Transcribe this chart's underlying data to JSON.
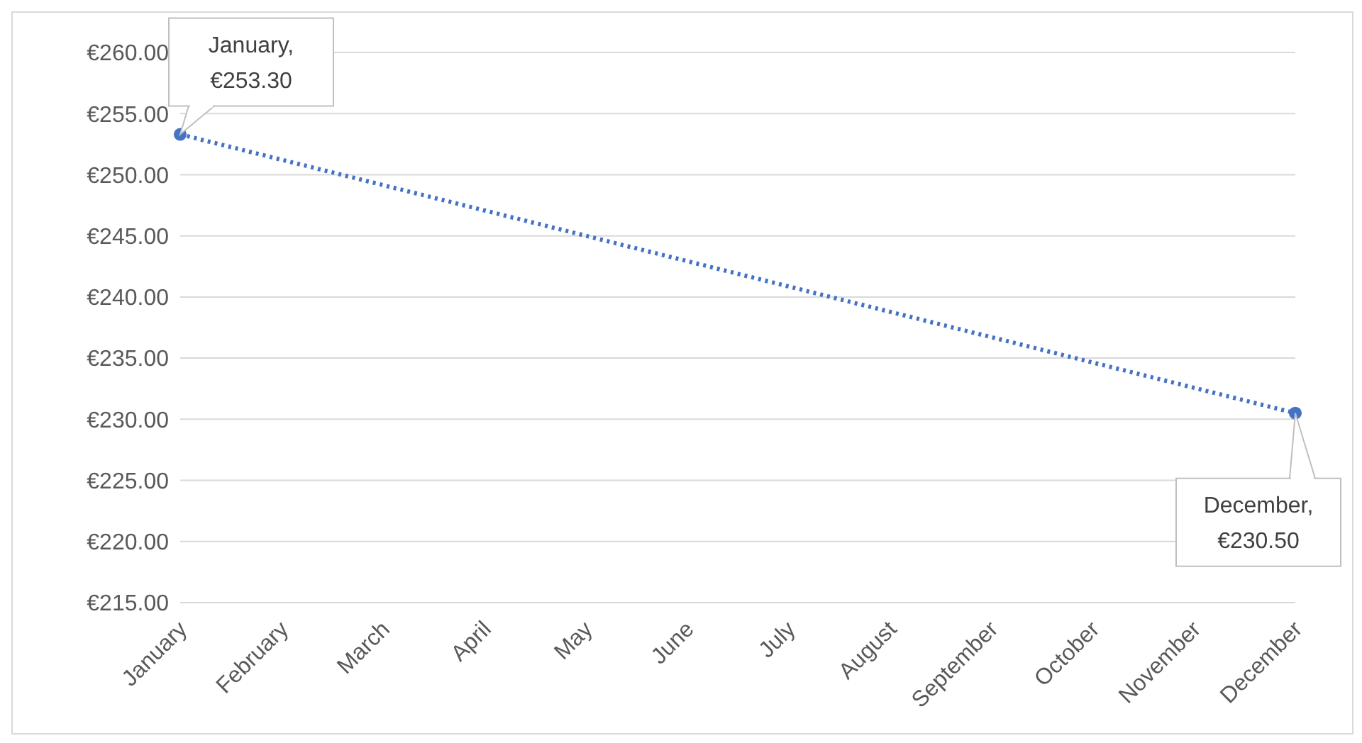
{
  "chart_data": {
    "type": "scatter",
    "categories": [
      "January",
      "February",
      "March",
      "April",
      "May",
      "June",
      "July",
      "August",
      "September",
      "October",
      "November",
      "December"
    ],
    "series": [
      {
        "color": "#4472c4",
        "marker": "circle",
        "values": [
          253.3,
          null,
          null,
          null,
          null,
          null,
          null,
          null,
          null,
          null,
          null,
          230.5
        ]
      },
      {
        "type": "line",
        "color": "#4472c4",
        "line_style": "dotted",
        "marker": "none",
        "x": [
          "January",
          "December"
        ],
        "values": [
          253.3,
          230.5
        ]
      }
    ],
    "ylim": [
      215,
      260
    ],
    "yticks": [
      {
        "value": 215,
        "label": "€215.00"
      },
      {
        "value": 220,
        "label": "€220.00"
      },
      {
        "value": 225,
        "label": "€225.00"
      },
      {
        "value": 230,
        "label": "€230.00"
      },
      {
        "value": 235,
        "label": "€235.00"
      },
      {
        "value": 240,
        "label": "€240.00"
      },
      {
        "value": 245,
        "label": "€245.00"
      },
      {
        "value": 250,
        "label": "€250.00"
      },
      {
        "value": 255,
        "label": "€255.00"
      },
      {
        "value": 260,
        "label": "€260.00"
      }
    ],
    "grid": "y",
    "legend": false,
    "annotations": [
      {
        "text": "January, €253.30",
        "x": "January",
        "y": 253.3
      },
      {
        "text": "December, €230.50",
        "x": "December",
        "y": 230.5
      }
    ]
  }
}
